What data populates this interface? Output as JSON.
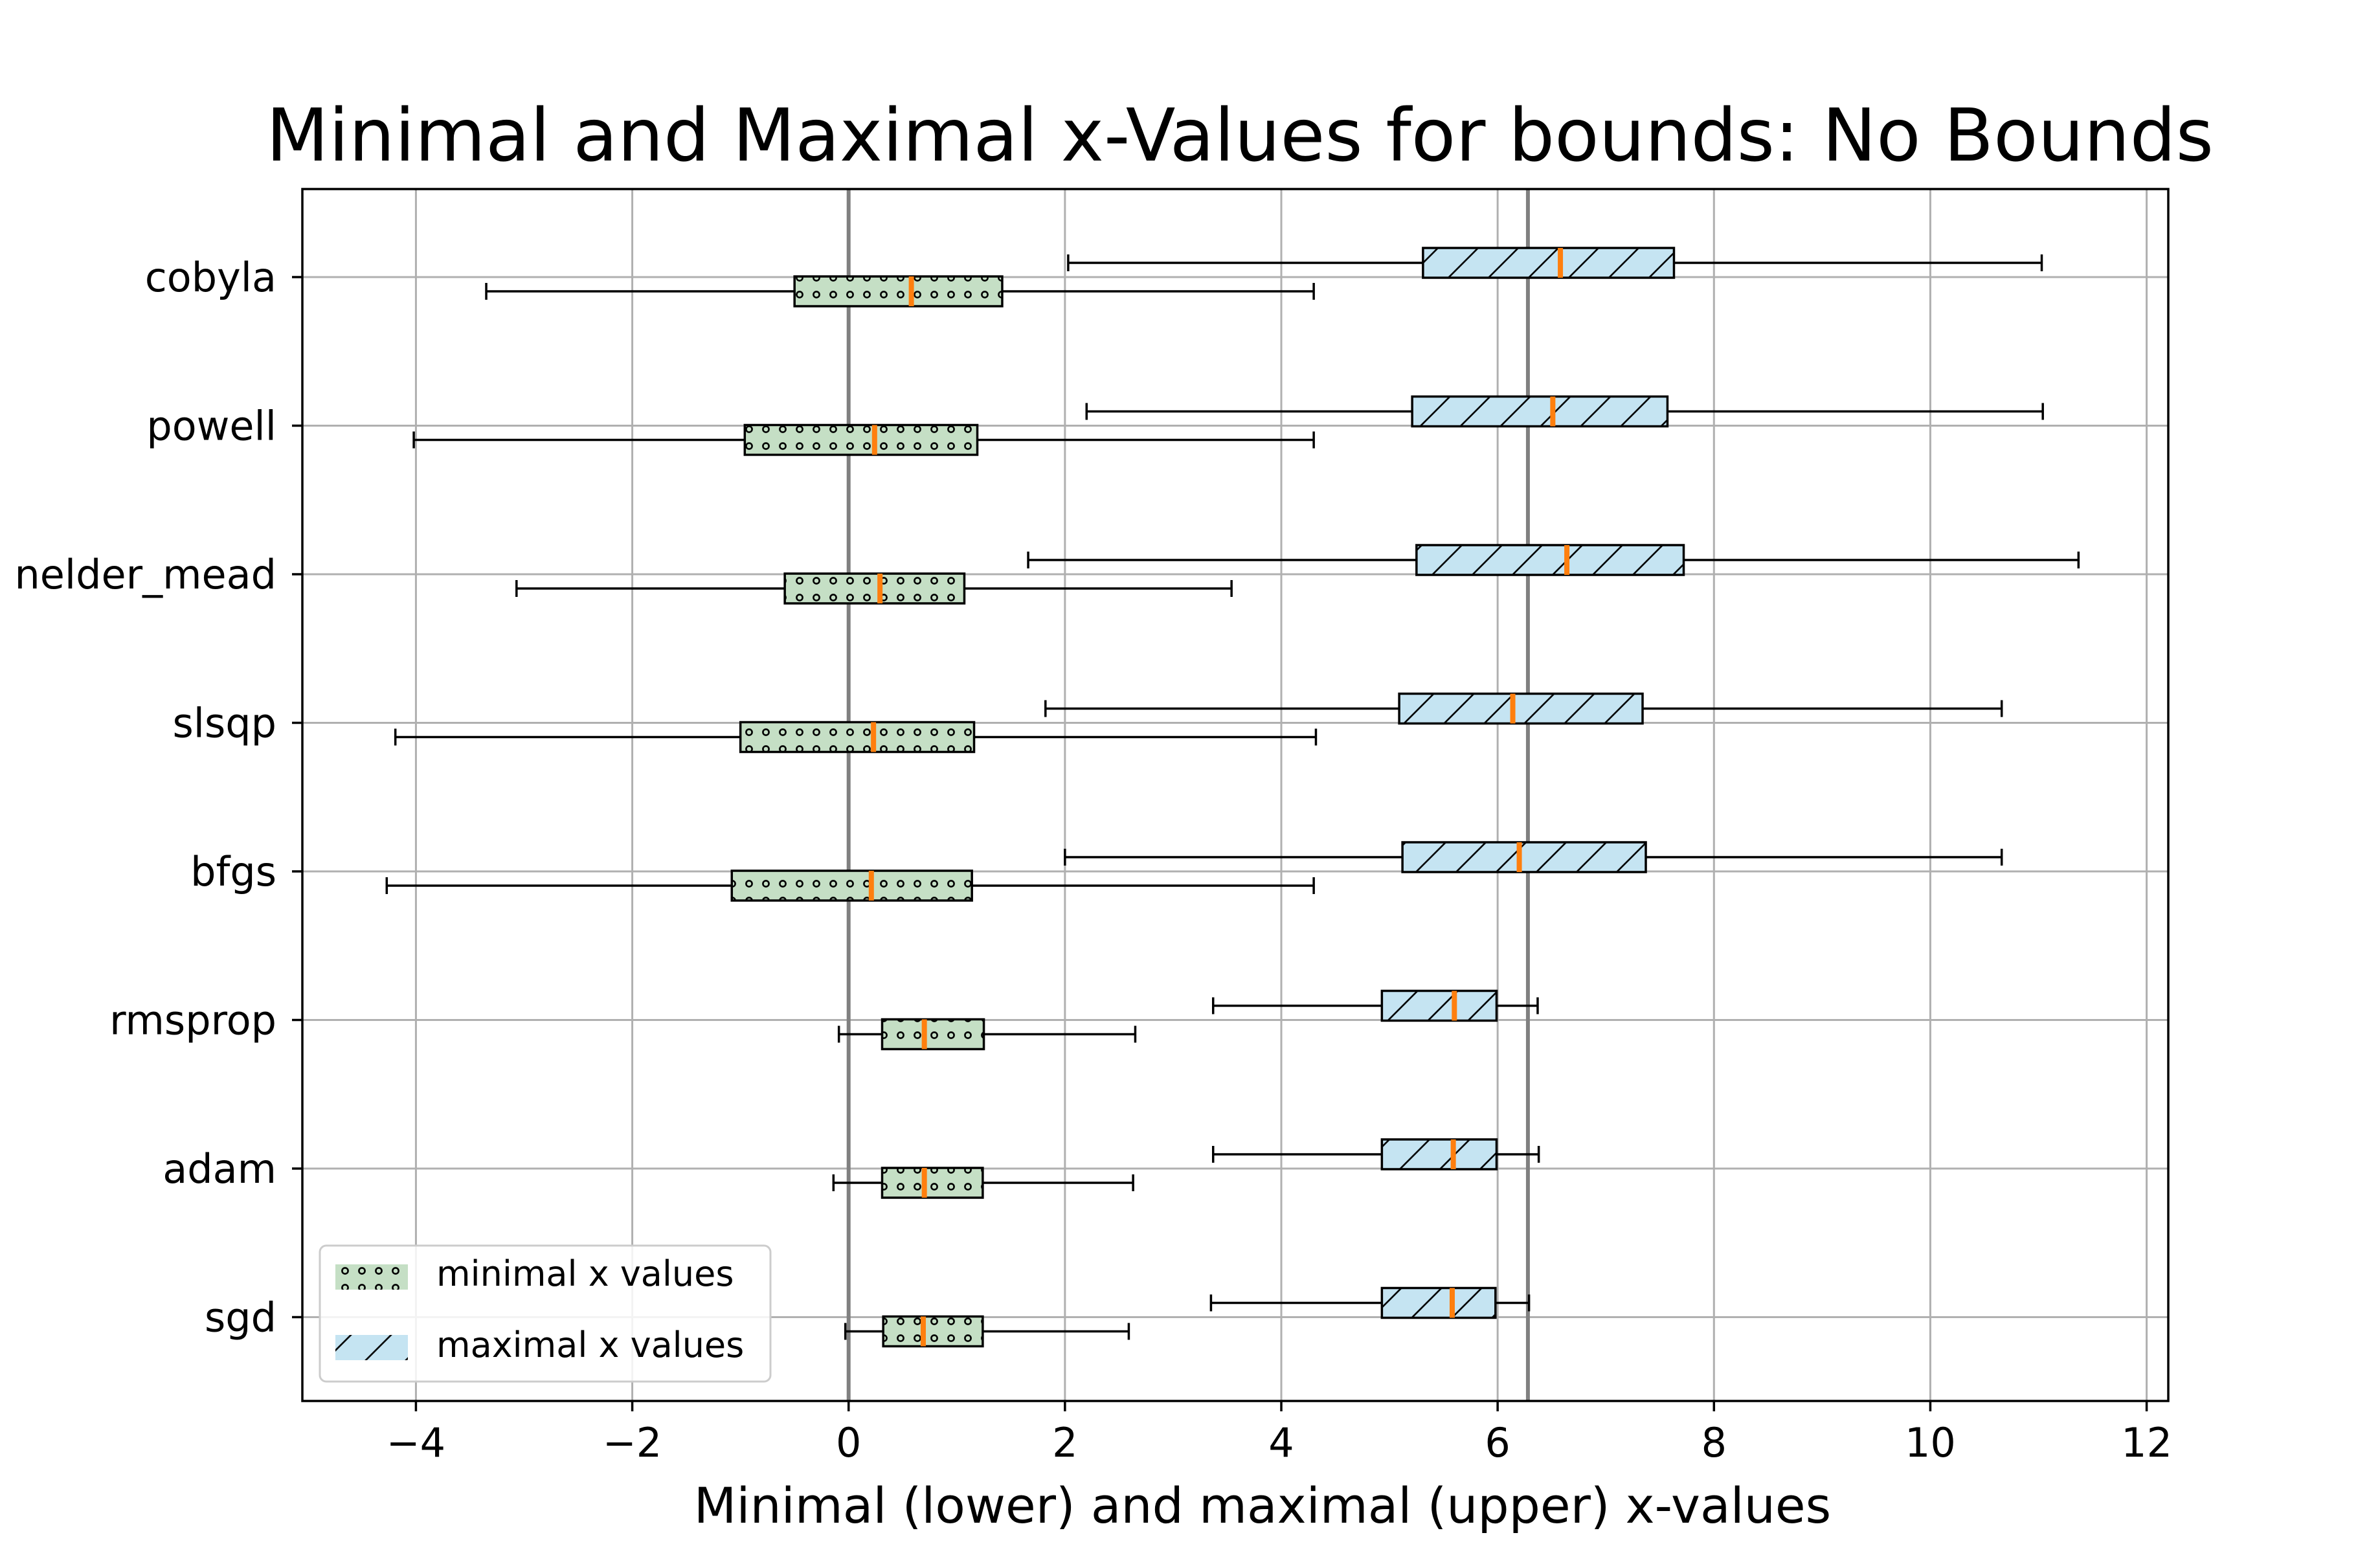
{
  "chart_data": {
    "type": "boxplot",
    "orientation": "horizontal",
    "title": "Minimal and Maximal x-Values for bounds: No Bounds",
    "xlabel": "Minimal (lower) and maximal (upper) x-values",
    "ylabel": "",
    "xlim": [
      -5.05,
      12.2
    ],
    "xticks": [
      -4,
      -2,
      0,
      2,
      4,
      6,
      8,
      10,
      12
    ],
    "xtick_labels": [
      "−4",
      "−2",
      "0",
      "2",
      "4",
      "6",
      "8",
      "10",
      "12"
    ],
    "grid": true,
    "legend_position": "lower-left",
    "reference_lines": [
      0,
      6.28
    ],
    "categories": [
      "cobyla",
      "powell",
      "nelder_mead",
      "slsqp",
      "bfgs",
      "rmsprop",
      "adam",
      "sgd"
    ],
    "series": [
      {
        "name": "minimal x values",
        "color": "#c5dfc5",
        "hatch": "dots",
        "boxes": [
          {
            "whislo": -3.35,
            "q1": -0.5,
            "med": 0.58,
            "q3": 1.42,
            "whishi": 4.3
          },
          {
            "whislo": -4.02,
            "q1": -0.96,
            "med": 0.24,
            "q3": 1.19,
            "whishi": 4.3
          },
          {
            "whislo": -3.07,
            "q1": -0.59,
            "med": 0.29,
            "q3": 1.07,
            "whishi": 3.54
          },
          {
            "whislo": -4.19,
            "q1": -1.0,
            "med": 0.23,
            "q3": 1.16,
            "whishi": 4.32
          },
          {
            "whislo": -4.27,
            "q1": -1.08,
            "med": 0.21,
            "q3": 1.14,
            "whishi": 4.3
          },
          {
            "whislo": -0.09,
            "q1": 0.31,
            "med": 0.7,
            "q3": 1.25,
            "whishi": 2.65
          },
          {
            "whislo": -0.14,
            "q1": 0.31,
            "med": 0.7,
            "q3": 1.24,
            "whishi": 2.63
          },
          {
            "whislo": -0.03,
            "q1": 0.32,
            "med": 0.69,
            "q3": 1.24,
            "whishi": 2.59
          }
        ]
      },
      {
        "name": "maximal x values",
        "color": "#c5e4f2",
        "hatch": "diagonal",
        "boxes": [
          {
            "whislo": 2.03,
            "q1": 5.31,
            "med": 6.58,
            "q3": 7.63,
            "whishi": 11.03
          },
          {
            "whislo": 2.2,
            "q1": 5.21,
            "med": 6.51,
            "q3": 7.57,
            "whishi": 11.04
          },
          {
            "whislo": 1.66,
            "q1": 5.25,
            "med": 6.64,
            "q3": 7.72,
            "whishi": 11.37
          },
          {
            "whislo": 1.82,
            "q1": 5.09,
            "med": 6.14,
            "q3": 7.34,
            "whishi": 10.66
          },
          {
            "whislo": 2.0,
            "q1": 5.12,
            "med": 6.2,
            "q3": 7.37,
            "whishi": 10.66
          },
          {
            "whislo": 3.37,
            "q1": 4.93,
            "med": 5.6,
            "q3": 5.99,
            "whishi": 6.37
          },
          {
            "whislo": 3.37,
            "q1": 4.93,
            "med": 5.59,
            "q3": 5.99,
            "whishi": 6.38
          },
          {
            "whislo": 3.35,
            "q1": 4.93,
            "med": 5.58,
            "q3": 5.98,
            "whishi": 6.29
          }
        ]
      }
    ],
    "colors": {
      "median": "#ff7f0e",
      "reference_line": "#808080",
      "grid": "#b0b0b0"
    }
  }
}
